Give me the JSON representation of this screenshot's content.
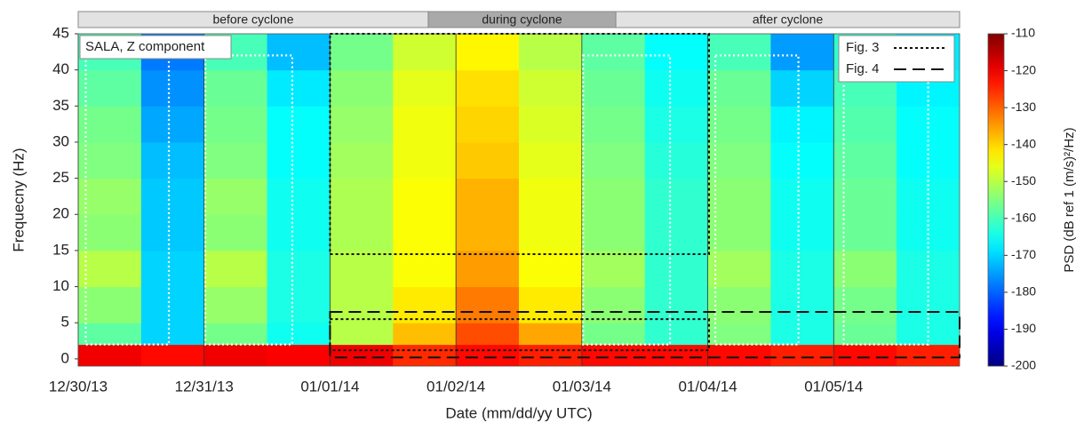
{
  "chart_data": {
    "type": "heatmap",
    "annotation": "SALA, Z component",
    "x_label": "Date (mm/dd/yy UTC)",
    "y_label": "Frequecny (Hz)",
    "colorbar_label": "PSD (dB ref 1 (m/s)²/Hz)",
    "colormap": "jet",
    "xlim": [
      0,
      7
    ],
    "ylim": [
      -1,
      45
    ],
    "xticks": [
      {
        "value": 0,
        "label": "12/30/13"
      },
      {
        "value": 1,
        "label": "12/31/13"
      },
      {
        "value": 2,
        "label": "01/01/14"
      },
      {
        "value": 3,
        "label": "01/02/14"
      },
      {
        "value": 4,
        "label": "01/03/14"
      },
      {
        "value": 5,
        "label": "01/04/14"
      },
      {
        "value": 6,
        "label": "01/05/14"
      }
    ],
    "yticks": [
      0,
      5,
      10,
      15,
      20,
      25,
      30,
      35,
      40,
      45
    ],
    "clim": [
      -200,
      -110
    ],
    "cticks": [
      -110,
      -120,
      -130,
      -140,
      -150,
      -160,
      -170,
      -180,
      -190,
      -200
    ],
    "grid": true,
    "x": [
      0,
      0.5,
      1,
      1.5,
      2,
      2.5,
      3,
      3.5,
      4,
      4.5,
      5,
      5.5,
      6,
      6.5,
      7
    ],
    "y": [
      -1,
      2,
      5,
      10,
      15,
      20,
      25,
      30,
      35,
      40,
      45
    ],
    "z": [
      [
        -120,
        -122,
        -120,
        -121,
        -120,
        -125,
        -122,
        -124,
        -122,
        -122,
        -122,
        -124,
        -122,
        -124
      ],
      [
        -158,
        -170,
        -156,
        -165,
        -150,
        -138,
        -128,
        -136,
        -156,
        -162,
        -155,
        -164,
        -157,
        -164
      ],
      [
        -154,
        -170,
        -153,
        -164,
        -150,
        -142,
        -132,
        -142,
        -154,
        -162,
        -154,
        -164,
        -156,
        -164
      ],
      [
        -150,
        -170,
        -150,
        -164,
        -150,
        -144,
        -135,
        -144,
        -152,
        -162,
        -152,
        -164,
        -154,
        -164
      ],
      [
        -154,
        -171,
        -154,
        -165,
        -151,
        -144,
        -137,
        -145,
        -154,
        -162,
        -154,
        -165,
        -157,
        -165
      ],
      [
        -153,
        -171,
        -153,
        -165,
        -151,
        -144,
        -137,
        -145,
        -154,
        -162,
        -154,
        -165,
        -157,
        -165
      ],
      [
        -155,
        -172,
        -155,
        -166,
        -152,
        -145,
        -139,
        -146,
        -155,
        -163,
        -155,
        -166,
        -158,
        -166
      ],
      [
        -156,
        -174,
        -156,
        -166,
        -153,
        -145,
        -140,
        -147,
        -156,
        -164,
        -156,
        -167,
        -159,
        -166
      ],
      [
        -158,
        -176,
        -157,
        -168,
        -154,
        -146,
        -141,
        -148,
        -157,
        -165,
        -157,
        -170,
        -160,
        -167
      ],
      [
        -160,
        -178,
        -160,
        -172,
        -156,
        -148,
        -143,
        -150,
        -158,
        -166,
        -160,
        -175,
        -162,
        -168
      ]
    ],
    "phases": [
      {
        "label": "before cyclone",
        "x": [
          0,
          2.78
        ],
        "color": "#e2e2e2"
      },
      {
        "label": "during cyclone",
        "x": [
          2.78,
          4.27
        ],
        "color": "#a9a9a9"
      },
      {
        "label": "after cyclone",
        "x": [
          4.27,
          7
        ],
        "color": "#e2e2e2"
      }
    ],
    "legend_position": "upper right",
    "legend": [
      {
        "name": "Fig. 3",
        "style": "short-dash"
      },
      {
        "name": "Fig. 4",
        "style": "long-dash"
      }
    ],
    "boxes": [
      {
        "legend": 0,
        "x": [
          2,
          5.01
        ],
        "y": [
          14.5,
          45
        ]
      },
      {
        "legend": 0,
        "x": [
          2,
          5.01
        ],
        "y": [
          1.2,
          5.5
        ]
      },
      {
        "legend": 1,
        "x": [
          2,
          7
        ],
        "y": [
          0.2,
          6.5
        ]
      }
    ],
    "windows": [
      {
        "x": [
          0.06,
          0.72
        ],
        "y": [
          2,
          42
        ]
      },
      {
        "x": [
          1.01,
          1.7
        ],
        "y": [
          2,
          42
        ]
      },
      {
        "x": [
          4.01,
          4.7
        ],
        "y": [
          2,
          42
        ]
      },
      {
        "x": [
          5.06,
          5.72
        ],
        "y": [
          2,
          42
        ]
      },
      {
        "x": [
          6.08,
          6.75
        ],
        "y": [
          2,
          42
        ]
      }
    ]
  }
}
